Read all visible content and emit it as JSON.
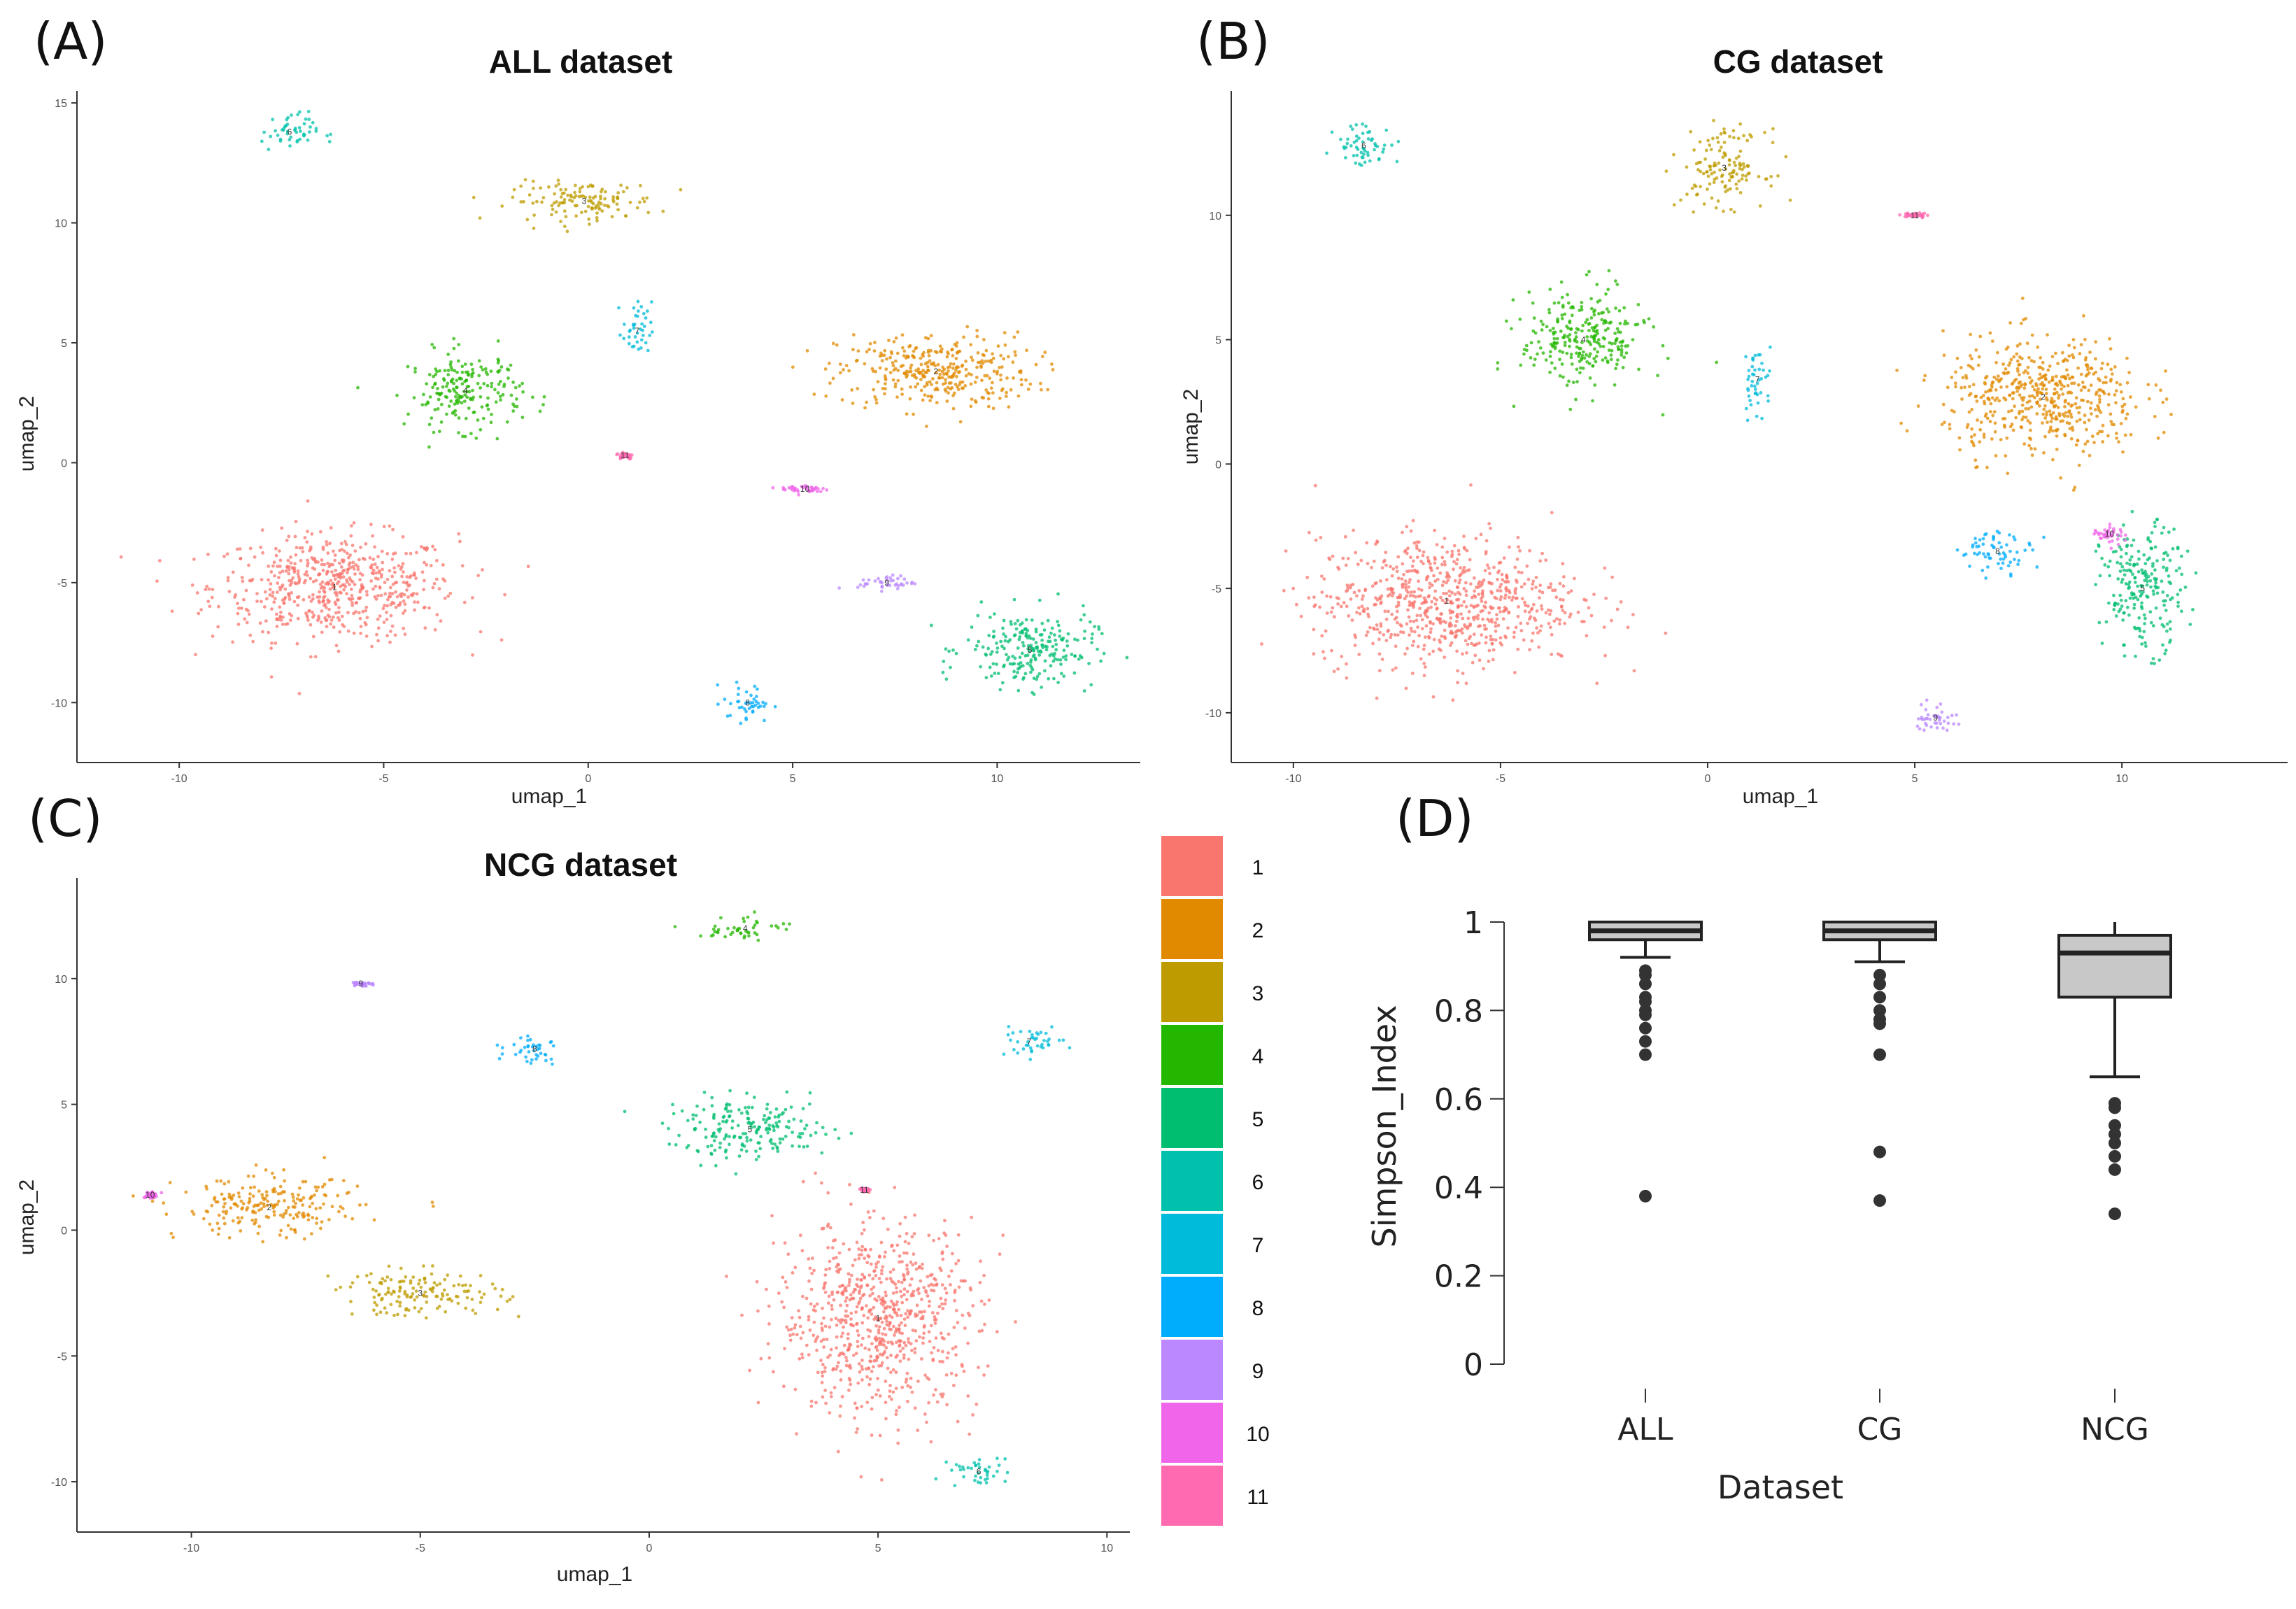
{
  "panel_letters": [
    "(A)",
    "(B)",
    "(C)",
    "(D)"
  ],
  "legend": {
    "labels": [
      "1",
      "2",
      "3",
      "4",
      "5",
      "6",
      "7",
      "8",
      "9",
      "10",
      "11"
    ],
    "colors": [
      "#F8766D",
      "#E18A00",
      "#BE9C00",
      "#24B700",
      "#00BE70",
      "#00C1AB",
      "#00BBDA",
      "#00ACFC",
      "#BB88FF",
      "#F066EA",
      "#FF6AB0"
    ]
  },
  "chart_data": [
    {
      "type": "scatter",
      "title": "ALL dataset",
      "xlabel": "umap_1",
      "ylabel": "umap_2",
      "xlim": [
        -12.5,
        13.5
      ],
      "ylim": [
        -12.5,
        15.5
      ],
      "xticks": [
        -10,
        -5,
        0,
        5,
        10
      ],
      "yticks": [
        -10,
        -5,
        0,
        5,
        10,
        15
      ],
      "clusters": [
        {
          "label": "1",
          "color_index": 0,
          "x": -6.2,
          "y": -5.2
        },
        {
          "label": "2",
          "color_index": 1,
          "x": 8.5,
          "y": 3.8
        },
        {
          "label": "3",
          "color_index": 2,
          "x": -0.1,
          "y": 10.9
        },
        {
          "label": "4",
          "color_index": 3,
          "x": -3.0,
          "y": 3.0
        },
        {
          "label": "5",
          "color_index": 4,
          "x": 10.8,
          "y": -7.8
        },
        {
          "label": "6",
          "color_index": 5,
          "x": -7.3,
          "y": 13.8
        },
        {
          "label": "7",
          "color_index": 6,
          "x": 1.2,
          "y": 5.5
        },
        {
          "label": "8",
          "color_index": 7,
          "x": 3.9,
          "y": -10.0
        },
        {
          "label": "9",
          "color_index": 8,
          "x": 7.3,
          "y": -5.0
        },
        {
          "label": "10",
          "color_index": 9,
          "x": 5.3,
          "y": -1.1
        },
        {
          "label": "11",
          "color_index": 10,
          "x": 0.9,
          "y": 0.3
        }
      ]
    },
    {
      "type": "scatter",
      "title": "CG dataset",
      "xlabel": "umap_1",
      "ylabel": "umap_2",
      "xlim": [
        -11.5,
        14.0
      ],
      "ylim": [
        -12.0,
        15.0
      ],
      "xticks": [
        -10,
        -5,
        0,
        5,
        10
      ],
      "yticks": [
        -10,
        -5,
        0,
        5,
        10
      ],
      "clusters": [
        {
          "label": "1",
          "color_index": 0,
          "x": -6.3,
          "y": -5.5
        },
        {
          "label": "2",
          "color_index": 1,
          "x": 8.1,
          "y": 2.7
        },
        {
          "label": "3",
          "color_index": 2,
          "x": 0.4,
          "y": 11.9
        },
        {
          "label": "4",
          "color_index": 3,
          "x": -3.0,
          "y": 5.0
        },
        {
          "label": "5",
          "color_index": 4,
          "x": 10.5,
          "y": -5.0
        },
        {
          "label": "6",
          "color_index": 5,
          "x": -8.3,
          "y": 12.8
        },
        {
          "label": "7",
          "color_index": 6,
          "x": 1.2,
          "y": 3.4
        },
        {
          "label": "8",
          "color_index": 7,
          "x": 7.0,
          "y": -3.5
        },
        {
          "label": "9",
          "color_index": 8,
          "x": 5.5,
          "y": -10.2
        },
        {
          "label": "10",
          "color_index": 9,
          "x": 9.7,
          "y": -2.8
        },
        {
          "label": "11",
          "color_index": 10,
          "x": 5.0,
          "y": 10.0
        }
      ]
    },
    {
      "type": "scatter",
      "title": "NCG dataset",
      "xlabel": "umap_1",
      "ylabel": "umap_2",
      "xlim": [
        -12.5,
        10.5
      ],
      "ylim": [
        -12.0,
        14.0
      ],
      "xticks": [
        -10,
        -5,
        0,
        5,
        10
      ],
      "yticks": [
        -10,
        -5,
        0,
        5,
        10
      ],
      "clusters": [
        {
          "label": "1",
          "color_index": 0,
          "x": 5.0,
          "y": -3.5
        },
        {
          "label": "2",
          "color_index": 1,
          "x": -8.3,
          "y": 0.9
        },
        {
          "label": "3",
          "color_index": 2,
          "x": -5.0,
          "y": -2.5
        },
        {
          "label": "4",
          "color_index": 3,
          "x": 2.1,
          "y": 12.0
        },
        {
          "label": "5",
          "color_index": 4,
          "x": 2.2,
          "y": 4.0
        },
        {
          "label": "6",
          "color_index": 5,
          "x": 7.2,
          "y": -9.6
        },
        {
          "label": "7",
          "color_index": 6,
          "x": 8.3,
          "y": 7.5
        },
        {
          "label": "8",
          "color_index": 7,
          "x": -2.5,
          "y": 7.2
        },
        {
          "label": "9",
          "color_index": 8,
          "x": -6.3,
          "y": 9.8
        },
        {
          "label": "10",
          "color_index": 9,
          "x": -10.9,
          "y": 1.4
        },
        {
          "label": "11",
          "color_index": 10,
          "x": 4.7,
          "y": 1.6
        }
      ]
    },
    {
      "type": "box",
      "title": "",
      "xlabel": "Dataset",
      "ylabel": "Simpson_Index",
      "ylim": [
        0,
        1
      ],
      "yticks": [
        0,
        0.2,
        0.4,
        0.6,
        0.8,
        1
      ],
      "ytick_labels": [
        "0",
        "0.2",
        "0.4",
        "0.6",
        "0.8",
        "1"
      ],
      "categories": [
        "ALL",
        "CG",
        "NCG"
      ],
      "boxes": [
        {
          "name": "ALL",
          "q1": 0.96,
          "median": 0.98,
          "q3": 1.0,
          "whisker_low": 0.92,
          "whisker_high": 1.0,
          "outliers": [
            0.89,
            0.88,
            0.86,
            0.83,
            0.82,
            0.8,
            0.79,
            0.76,
            0.73,
            0.7,
            0.38
          ]
        },
        {
          "name": "CG",
          "q1": 0.96,
          "median": 0.98,
          "q3": 1.0,
          "whisker_low": 0.91,
          "whisker_high": 1.0,
          "outliers": [
            0.88,
            0.86,
            0.83,
            0.8,
            0.78,
            0.77,
            0.7,
            0.48,
            0.37
          ]
        },
        {
          "name": "NCG",
          "q1": 0.83,
          "median": 0.93,
          "q3": 0.97,
          "whisker_low": 0.65,
          "whisker_high": 1.0,
          "outliers": [
            0.59,
            0.58,
            0.54,
            0.52,
            0.5,
            0.47,
            0.44,
            0.34
          ]
        }
      ]
    }
  ]
}
